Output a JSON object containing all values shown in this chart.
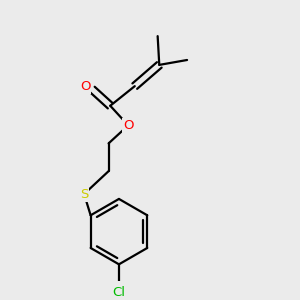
{
  "bg_color": "#ebebeb",
  "bond_color": "#000000",
  "atom_colors": {
    "O": "#ff0000",
    "S": "#cccc00",
    "Cl": "#00bb00",
    "C": "#000000"
  },
  "figsize": [
    3.0,
    3.0
  ],
  "dpi": 100,
  "lw": 1.6,
  "fontsize": 9.5
}
